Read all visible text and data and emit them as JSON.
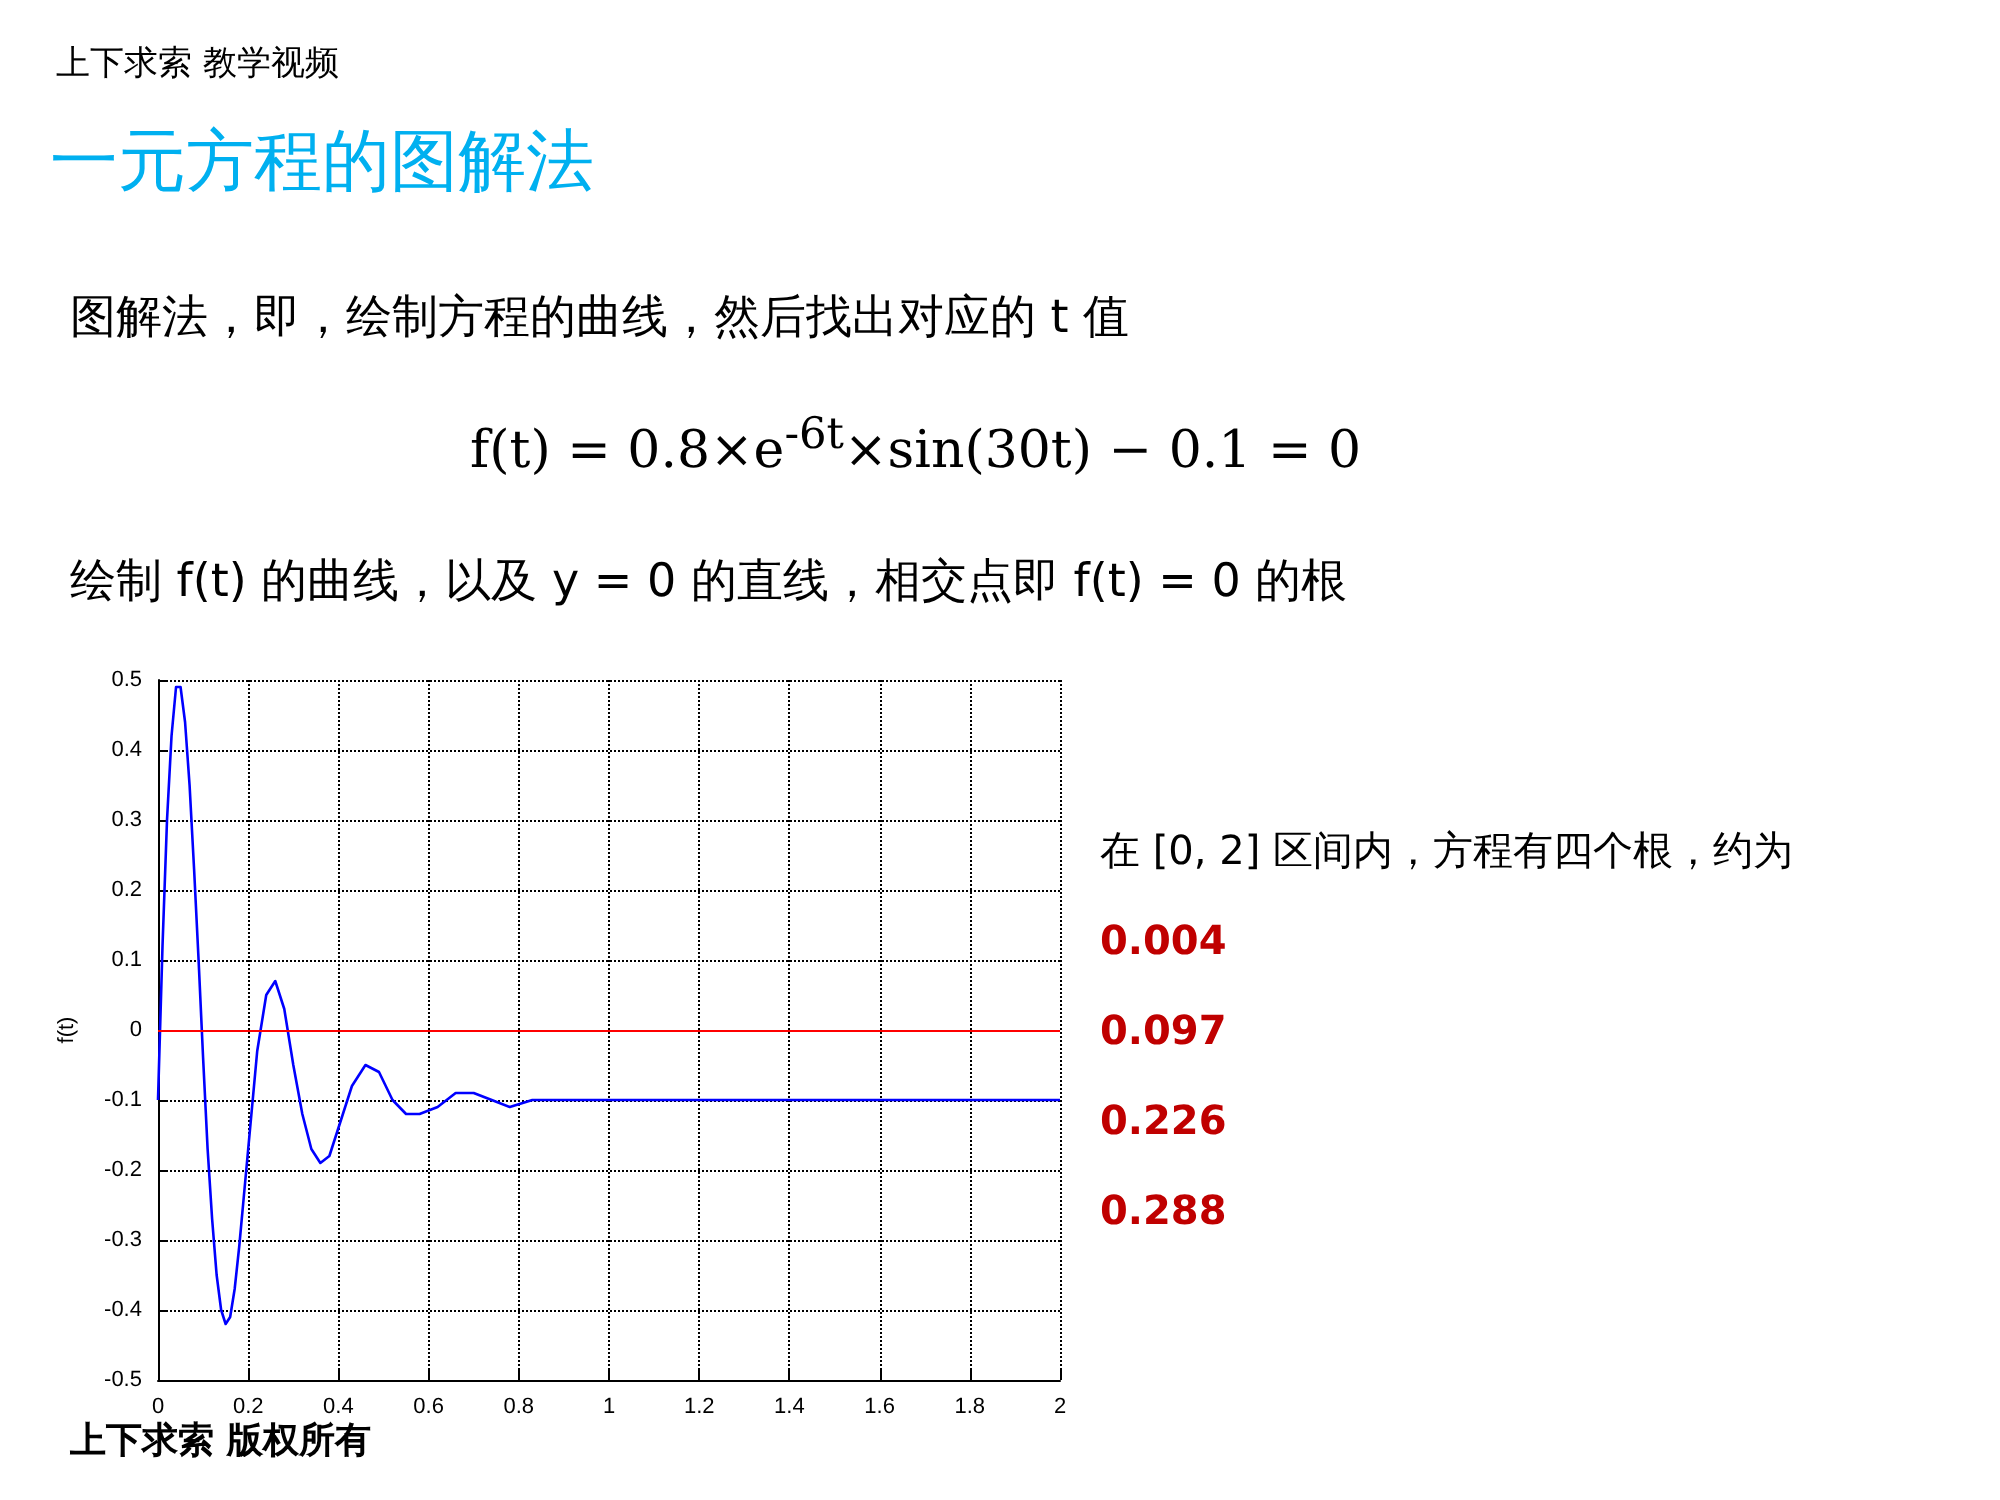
{
  "chart_data": {
    "type": "line",
    "title": "一元方程的图解法",
    "annotations": [
      "上下求索 教学视频",
      "图解法，即，绘制方程的曲线，然后找出对应的 t 值",
      "f(t) = 0.8×e$^{-6t}$×sin(30t) − 0.1 = 0",
      "绘制 f(t) 的曲线，以及 y = 0 的直线，相交点即 f(t) = 0 的根",
      "在 [0, 2] 区间内，方程有四个根，约为",
      "0.004",
      "0.097",
      "0.226",
      "0.288",
      "上下求索 版权所有"
    ],
    "ylabel": "f(t)",
    "x": [
      0,
      0.01,
      0.02,
      0.03,
      0.04,
      0.05,
      0.06,
      0.07,
      0.08,
      0.09,
      0.1,
      0.11,
      0.12,
      0.13,
      0.14,
      0.15,
      0.16,
      0.17,
      0.18,
      0.19,
      0.2,
      0.22,
      0.24,
      0.26,
      0.28,
      0.3,
      0.32,
      0.34,
      0.36,
      0.38,
      0.4,
      0.43,
      0.46,
      0.49,
      0.52,
      0.55,
      0.58,
      0.62,
      0.66,
      0.7,
      0.74,
      0.78,
      0.83,
      0.9,
      1,
      1.2,
      1.5,
      2
    ],
    "series": [
      {
        "color": "#0000ff",
        "values": [
          -0.1,
          0.12,
          0.3,
          0.42,
          0.49,
          0.49,
          0.44,
          0.35,
          0.23,
          0.1,
          -0.04,
          -0.17,
          -0.27,
          -0.35,
          -0.4,
          -0.42,
          -0.41,
          -0.37,
          -0.31,
          -0.24,
          -0.17,
          -0.03,
          0.05,
          0.07,
          0.03,
          -0.05,
          -0.12,
          -0.17,
          -0.19,
          -0.18,
          -0.14,
          -0.08,
          -0.05,
          -0.06,
          -0.1,
          -0.12,
          -0.12,
          -0.11,
          -0.09,
          -0.09,
          -0.1,
          -0.11,
          -0.1,
          -0.1,
          -0.1,
          -0.1,
          -0.1,
          -0.1
        ]
      }
    ],
    "xlim": [
      0,
      2
    ],
    "xticks": [
      0,
      0.2,
      0.4,
      0.6,
      0.8,
      1,
      1.2,
      1.4,
      1.6,
      1.8,
      2
    ],
    "ylim": [
      -0.5,
      0.5
    ],
    "yticks": [
      -0.5,
      -0.4,
      -0.3,
      -0.2,
      -0.1,
      0,
      0.1,
      0.2,
      0.3,
      0.4,
      0.5
    ],
    "ref_lines": [
      {
        "axis": "y",
        "value": 0,
        "color": "#ff0000"
      }
    ],
    "grid": true,
    "marker": "none",
    "line_style": "solid"
  }
}
